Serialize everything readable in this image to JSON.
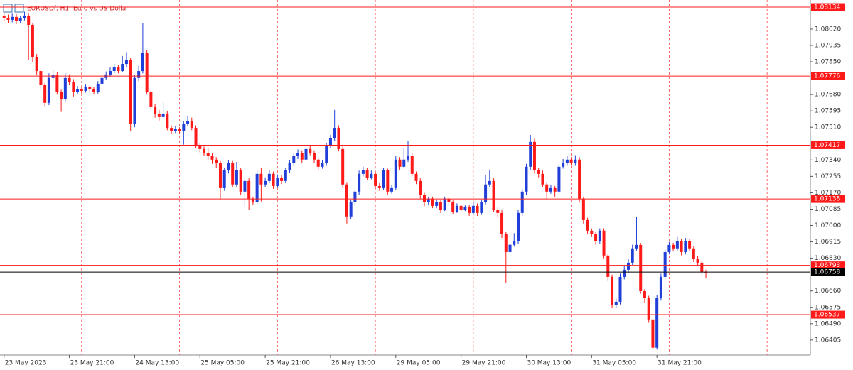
{
  "chart_data": {
    "type": "candlestick",
    "title": "EURUSDf, H1:  Euro vs US Dollar",
    "up_color": "#1f3fd8",
    "down_color": "#ff1a1a",
    "xlim": [
      -1,
      197.6
    ],
    "ylim": [
      1.06327,
      1.08171
    ],
    "xticks": [
      {
        "value": 0,
        "label": "23 May 2023"
      },
      {
        "value": 16,
        "label": "23 May 21:00"
      },
      {
        "value": 32,
        "label": "24 May 13:00"
      },
      {
        "value": 48,
        "label": "25 May 05:00"
      },
      {
        "value": 64,
        "label": "25 May 21:00"
      },
      {
        "value": 80,
        "label": "26 May 13:00"
      },
      {
        "value": 96,
        "label": "29 May 05:00"
      },
      {
        "value": 112,
        "label": "29 May 21:00"
      },
      {
        "value": 128,
        "label": "30 May 13:00"
      },
      {
        "value": 144,
        "label": "31 May 05:00"
      },
      {
        "value": 160,
        "label": "31 May 21:00"
      }
    ],
    "vgrid": [
      19,
      43,
      67,
      91,
      115,
      139,
      163,
      187
    ],
    "yticks": [
      {
        "value": 1.0802,
        "label": "1.08020"
      },
      1.07935,
      {
        "value": 1.0785,
        "label": "1.07850"
      },
      {
        "value": 1.0768,
        "label": "1.07680"
      },
      1.07595,
      {
        "value": 1.0751,
        "label": "1.07510"
      },
      {
        "value": 1.0734,
        "label": "1.07340"
      },
      1.07255,
      {
        "value": 1.0717,
        "label": "1.07170"
      },
      1.07085,
      {
        "value": 1.07,
        "label": "1.07000"
      },
      1.06915,
      {
        "value": 1.0683,
        "label": "1.06830"
      },
      {
        "value": 1.0666,
        "label": "1.06660"
      },
      1.06575,
      {
        "value": 1.0649,
        "label": "1.06490"
      },
      1.06405
    ],
    "levels": [
      {
        "value": 1.08134,
        "color": "#ff1a1a"
      },
      {
        "value": 1.07776,
        "color": "#ff1a1a"
      },
      {
        "value": 1.07417,
        "color": "#ff1a1a"
      },
      {
        "value": 1.07138,
        "color": "#ff1a1a"
      },
      {
        "value": 1.06793,
        "color": "#ff1a1a"
      },
      {
        "value": 1.06758,
        "color": "#000000"
      },
      {
        "value": 1.06537,
        "color": "#ff1a1a"
      }
    ],
    "ohlc": [
      [
        1.0809,
        1.08105,
        1.0806,
        1.08079
      ],
      [
        1.08079,
        1.08095,
        1.0805,
        1.08068
      ],
      [
        1.08068,
        1.081,
        1.08055,
        1.08083
      ],
      [
        1.08083,
        1.08098,
        1.08045,
        1.08061
      ],
      [
        1.08061,
        1.0809,
        1.0805,
        1.08075
      ],
      [
        1.08075,
        1.0811,
        1.08065,
        1.0809
      ],
      [
        1.0809,
        1.081,
        1.0786,
        1.08042
      ],
      [
        1.08042,
        1.0805,
        1.0785,
        1.07876
      ],
      [
        1.07876,
        1.0789,
        1.0778,
        1.07802
      ],
      [
        1.07802,
        1.07815,
        1.077,
        1.07729
      ],
      [
        1.07729,
        1.0774,
        1.0762,
        1.07637
      ],
      [
        1.07637,
        1.0779,
        1.07625,
        1.07766
      ],
      [
        1.07766,
        1.0781,
        1.0775,
        1.0778
      ],
      [
        1.0778,
        1.07795,
        1.0768,
        1.07692
      ],
      [
        1.07692,
        1.07705,
        1.0759,
        1.07655
      ],
      [
        1.07655,
        1.0779,
        1.0764,
        1.07766
      ],
      [
        1.07766,
        1.07785,
        1.0773,
        1.07747
      ],
      [
        1.07747,
        1.0776,
        1.0767,
        1.07692
      ],
      [
        1.07692,
        1.07725,
        1.0768,
        1.0771
      ],
      [
        1.0771,
        1.0772,
        1.07685,
        1.07699
      ],
      [
        1.07699,
        1.07735,
        1.0769,
        1.07721
      ],
      [
        1.07721,
        1.0773,
        1.07695,
        1.0771
      ],
      [
        1.0771,
        1.0772,
        1.0768,
        1.07692
      ],
      [
        1.07692,
        1.0775,
        1.07685,
        1.07736
      ],
      [
        1.07736,
        1.0778,
        1.07725,
        1.07766
      ],
      [
        1.07766,
        1.078,
        1.07755,
        1.07784
      ],
      [
        1.07784,
        1.0782,
        1.0777,
        1.07802
      ],
      [
        1.07802,
        1.0784,
        1.0779,
        1.07821
      ],
      [
        1.07821,
        1.07835,
        1.0779,
        1.07802
      ],
      [
        1.07802,
        1.0788,
        1.07795,
        1.07839
      ],
      [
        1.07839,
        1.079,
        1.0782,
        1.07858
      ],
      [
        1.07858,
        1.0787,
        1.0749,
        1.07526
      ],
      [
        1.07526,
        1.0778,
        1.0751,
        1.07766
      ],
      [
        1.07766,
        1.0783,
        1.0775,
        1.07802
      ],
      [
        1.07802,
        1.0805,
        1.0779,
        1.07895
      ],
      [
        1.07895,
        1.0791,
        1.0768,
        1.07692
      ],
      [
        1.07692,
        1.07705,
        1.076,
        1.07618
      ],
      [
        1.07618,
        1.0763,
        1.0756,
        1.07581
      ],
      [
        1.07581,
        1.076,
        1.07545,
        1.07563
      ],
      [
        1.07563,
        1.0764,
        1.07555,
        1.07581
      ],
      [
        1.07581,
        1.07595,
        1.07495,
        1.07507
      ],
      [
        1.07507,
        1.0752,
        1.07475,
        1.07489
      ],
      [
        1.07489,
        1.07515,
        1.0748,
        1.075
      ],
      [
        1.075,
        1.0751,
        1.07475,
        1.07489
      ],
      [
        1.07489,
        1.0754,
        1.0742,
        1.07526
      ],
      [
        1.07526,
        1.0757,
        1.07515,
        1.07544
      ],
      [
        1.07544,
        1.0756,
        1.07495,
        1.07507
      ],
      [
        1.07507,
        1.0752,
        1.074,
        1.07415
      ],
      [
        1.07415,
        1.0743,
        1.0738,
        1.07397
      ],
      [
        1.07397,
        1.0741,
        1.0736,
        1.07378
      ],
      [
        1.07378,
        1.074,
        1.0734,
        1.0736
      ],
      [
        1.0736,
        1.07375,
        1.0732,
        1.07342
      ],
      [
        1.07342,
        1.07355,
        1.073,
        1.07323
      ],
      [
        1.07323,
        1.07335,
        1.0714,
        1.07194
      ],
      [
        1.07194,
        1.073,
        1.0718,
        1.07286
      ],
      [
        1.07286,
        1.0734,
        1.0727,
        1.07323
      ],
      [
        1.07323,
        1.07335,
        1.072,
        1.07213
      ],
      [
        1.07213,
        1.0733,
        1.072,
        1.07286
      ],
      [
        1.07286,
        1.073,
        1.0716,
        1.07176
      ],
      [
        1.07176,
        1.0725,
        1.071,
        1.07231
      ],
      [
        1.07231,
        1.07245,
        1.0708,
        1.07139
      ],
      [
        1.07139,
        1.0715,
        1.07105,
        1.0712
      ],
      [
        1.0712,
        1.0729,
        1.0711,
        1.07268
      ],
      [
        1.07268,
        1.073,
        1.07125,
        1.07213
      ],
      [
        1.07213,
        1.0725,
        1.072,
        1.07231
      ],
      [
        1.07231,
        1.0729,
        1.0722,
        1.07268
      ],
      [
        1.07268,
        1.0728,
        1.0719,
        1.07205
      ],
      [
        1.07205,
        1.07265,
        1.07195,
        1.07249
      ],
      [
        1.07249,
        1.0726,
        1.07215,
        1.07231
      ],
      [
        1.07231,
        1.073,
        1.0722,
        1.07286
      ],
      [
        1.07286,
        1.0734,
        1.07275,
        1.07323
      ],
      [
        1.07323,
        1.07375,
        1.0731,
        1.0736
      ],
      [
        1.0736,
        1.07395,
        1.07345,
        1.07378
      ],
      [
        1.07378,
        1.0739,
        1.07325,
        1.07342
      ],
      [
        1.07342,
        1.0742,
        1.0733,
        1.07397
      ],
      [
        1.07397,
        1.07415,
        1.07365,
        1.07378
      ],
      [
        1.07378,
        1.0739,
        1.07325,
        1.07342
      ],
      [
        1.07342,
        1.07355,
        1.0729,
        1.07305
      ],
      [
        1.07305,
        1.0734,
        1.07295,
        1.07323
      ],
      [
        1.07323,
        1.0743,
        1.0731,
        1.07415
      ],
      [
        1.07415,
        1.0747,
        1.074,
        1.07452
      ],
      [
        1.07452,
        1.076,
        1.0744,
        1.07507
      ],
      [
        1.07507,
        1.0752,
        1.07385,
        1.07397
      ],
      [
        1.07397,
        1.0741,
        1.07195,
        1.07213
      ],
      [
        1.07213,
        1.07225,
        1.0701,
        1.07047
      ],
      [
        1.07047,
        1.07135,
        1.07035,
        1.0712
      ],
      [
        1.0712,
        1.0719,
        1.07105,
        1.07176
      ],
      [
        1.07176,
        1.07285,
        1.0716,
        1.07268
      ],
      [
        1.07268,
        1.07305,
        1.07255,
        1.07286
      ],
      [
        1.07286,
        1.073,
        1.07235,
        1.07249
      ],
      [
        1.07249,
        1.07285,
        1.0724,
        1.07268
      ],
      [
        1.07268,
        1.0728,
        1.0719,
        1.07205
      ],
      [
        1.07205,
        1.0722,
        1.0718,
        1.07194
      ],
      [
        1.07194,
        1.073,
        1.07185,
        1.07286
      ],
      [
        1.07286,
        1.07295,
        1.0716,
        1.07176
      ],
      [
        1.07176,
        1.0721,
        1.07165,
        1.07194
      ],
      [
        1.07194,
        1.0736,
        1.07185,
        1.07342
      ],
      [
        1.07342,
        1.07355,
        1.0729,
        1.07305
      ],
      [
        1.07305,
        1.074,
        1.07295,
        1.07342
      ],
      [
        1.07342,
        1.0744,
        1.0733,
        1.0736
      ],
      [
        1.0736,
        1.07375,
        1.07255,
        1.07268
      ],
      [
        1.07268,
        1.0728,
        1.07215,
        1.07231
      ],
      [
        1.07231,
        1.07245,
        1.0714,
        1.07157
      ],
      [
        1.07157,
        1.0717,
        1.071,
        1.0712
      ],
      [
        1.0712,
        1.0715,
        1.07105,
        1.07139
      ],
      [
        1.07139,
        1.0715,
        1.0709,
        1.07102
      ],
      [
        1.07102,
        1.07135,
        1.0709,
        1.0712
      ],
      [
        1.0712,
        1.0713,
        1.07065,
        1.07083
      ],
      [
        1.07083,
        1.0715,
        1.07075,
        1.07139
      ],
      [
        1.07139,
        1.0715,
        1.07105,
        1.0712
      ],
      [
        1.0712,
        1.0713,
        1.0706,
        1.07072
      ],
      [
        1.07072,
        1.07115,
        1.07065,
        1.07102
      ],
      [
        1.07102,
        1.0711,
        1.07075,
        1.07083
      ],
      [
        1.07083,
        1.07105,
        1.07075,
        1.07095
      ],
      [
        1.07095,
        1.07105,
        1.0705,
        1.07065
      ],
      [
        1.07065,
        1.0712,
        1.07055,
        1.07102
      ],
      [
        1.07102,
        1.07115,
        1.0705,
        1.07065
      ],
      [
        1.07065,
        1.07135,
        1.07055,
        1.0712
      ],
      [
        1.0712,
        1.0726,
        1.0711,
        1.07213
      ],
      [
        1.07213,
        1.0729,
        1.072,
        1.07231
      ],
      [
        1.07231,
        1.07245,
        1.0707,
        1.07083
      ],
      [
        1.07083,
        1.07095,
        1.0704,
        1.07065
      ],
      [
        1.07065,
        1.0708,
        1.06935,
        1.06954
      ],
      [
        1.06954,
        1.06965,
        1.067,
        1.06862
      ],
      [
        1.06862,
        1.0691,
        1.0684,
        1.069
      ],
      [
        1.069,
        1.0696,
        1.0689,
        1.06918
      ],
      [
        1.06918,
        1.0708,
        1.06905,
        1.07065
      ],
      [
        1.07065,
        1.0719,
        1.0705,
        1.07176
      ],
      [
        1.07176,
        1.0732,
        1.0716,
        1.07305
      ],
      [
        1.07305,
        1.0747,
        1.0729,
        1.07434
      ],
      [
        1.07434,
        1.0745,
        1.0727,
        1.07286
      ],
      [
        1.07286,
        1.073,
        1.0725,
        1.07268
      ],
      [
        1.07268,
        1.07285,
        1.072,
        1.07213
      ],
      [
        1.07213,
        1.07225,
        1.0714,
        1.07176
      ],
      [
        1.07176,
        1.0721,
        1.07165,
        1.07194
      ],
      [
        1.07194,
        1.07205,
        1.0715,
        1.07176
      ],
      [
        1.07176,
        1.0732,
        1.07165,
        1.07305
      ],
      [
        1.07305,
        1.07345,
        1.07295,
        1.07323
      ],
      [
        1.07323,
        1.0736,
        1.0731,
        1.07342
      ],
      [
        1.07342,
        1.07355,
        1.0731,
        1.07323
      ],
      [
        1.07323,
        1.07365,
        1.0731,
        1.07342
      ],
      [
        1.07342,
        1.07355,
        1.0712,
        1.07139
      ],
      [
        1.07139,
        1.0715,
        1.0701,
        1.07028
      ],
      [
        1.07028,
        1.0704,
        1.06955,
        1.06973
      ],
      [
        1.06973,
        1.06985,
        1.0694,
        1.06954
      ],
      [
        1.06954,
        1.06965,
        1.069,
        1.06918
      ],
      [
        1.06918,
        1.06985,
        1.06905,
        1.06973
      ],
      [
        1.06973,
        1.06985,
        1.0683,
        1.06844
      ],
      [
        1.06844,
        1.06855,
        1.06715,
        1.06733
      ],
      [
        1.06733,
        1.06745,
        1.0657,
        1.06586
      ],
      [
        1.06586,
        1.0662,
        1.0657,
        1.06604
      ],
      [
        1.06604,
        1.0675,
        1.0659,
        1.06733
      ],
      [
        1.06733,
        1.0679,
        1.0672,
        1.0677
      ],
      [
        1.0677,
        1.06825,
        1.06755,
        1.06807
      ],
      [
        1.06807,
        1.069,
        1.06795,
        1.06881
      ],
      [
        1.06881,
        1.07045,
        1.0687,
        1.06899
      ],
      [
        1.06899,
        1.0691,
        1.06645,
        1.06659
      ],
      [
        1.06659,
        1.0667,
        1.066,
        1.06623
      ],
      [
        1.06623,
        1.06635,
        1.06495,
        1.06512
      ],
      [
        1.06512,
        1.06525,
        1.0635,
        1.06365
      ],
      [
        1.06365,
        1.0664,
        1.06355,
        1.06623
      ],
      [
        1.06623,
        1.0675,
        1.0661,
        1.06733
      ],
      [
        1.06733,
        1.0688,
        1.0672,
        1.06862
      ],
      [
        1.06862,
        1.06915,
        1.0685,
        1.06899
      ],
      [
        1.06899,
        1.0691,
        1.06865,
        1.06881
      ],
      [
        1.06881,
        1.0694,
        1.0687,
        1.06918
      ],
      [
        1.06918,
        1.0693,
        1.06845,
        1.06862
      ],
      [
        1.06862,
        1.06935,
        1.0685,
        1.06918
      ],
      [
        1.06918,
        1.0693,
        1.06865,
        1.06881
      ],
      [
        1.06881,
        1.06895,
        1.0681,
        1.06825
      ],
      [
        1.06825,
        1.0684,
        1.0679,
        1.06807
      ],
      [
        1.06807,
        1.0682,
        1.06745,
        1.06759
      ],
      [
        1.06759,
        1.0677,
        1.06725,
        1.06758
      ]
    ]
  }
}
